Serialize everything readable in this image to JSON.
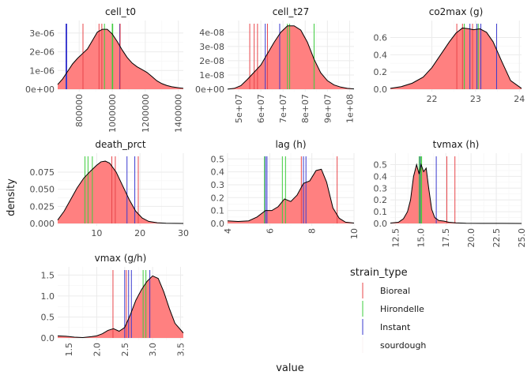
{
  "figure": {
    "xlabel": "value",
    "ylabel": "density"
  },
  "legend": {
    "title": "strain_type",
    "placement": "bottom-right",
    "entries": [
      {
        "label": "Bioreal",
        "color": "#F8766D"
      },
      {
        "label": "Hirondelle",
        "color": "#00C000"
      },
      {
        "label": "Instant",
        "color": "#3030D0"
      },
      {
        "label": "sourdough",
        "color": "#F4A6A6"
      }
    ]
  },
  "colors": {
    "density_fill": "#FF8080",
    "density_line": "#000000",
    "Bioreal": "#E8454A",
    "Hirondelle": "#3DCC3D",
    "Instant": "#3A3ACF"
  },
  "chart_data": [
    {
      "type": "area",
      "title": "cell_t0",
      "xlim": [
        670000,
        1430000
      ],
      "ylim": [
        0,
        3.5e-06
      ],
      "xticks": [
        800000,
        1000000,
        1200000,
        1400000
      ],
      "xtick_labels": [
        "800000",
        "1000000",
        "1200000",
        "1400000"
      ],
      "yticks": [
        0,
        1e-06,
        2e-06,
        3e-06
      ],
      "ytick_labels": [
        "0e+00",
        "1e-06",
        "2e-06",
        "3e-06"
      ],
      "x_label_rotation": 90,
      "density": {
        "x": [
          670000,
          700000,
          730000,
          760000,
          790000,
          820000,
          850000,
          880000,
          910000,
          940000,
          970000,
          1000000,
          1030000,
          1060000,
          1090000,
          1120000,
          1150000,
          1180000,
          1210000,
          1240000,
          1270000,
          1300000,
          1330000,
          1360000,
          1400000,
          1430000
        ],
        "y": [
          2.5e-07,
          5.5e-07,
          9.5e-07,
          1.35e-06,
          1.65e-06,
          1.9e-06,
          2.15e-06,
          2.6e-06,
          3.05e-06,
          3.2e-06,
          3.2e-06,
          2.95e-06,
          2.55e-06,
          2.1e-06,
          1.7e-06,
          1.4e-06,
          1.2e-06,
          1.05e-06,
          9e-07,
          6.8e-07,
          4.5e-07,
          3e-07,
          2e-07,
          1.3e-07,
          8e-08,
          5e-08
        ]
      },
      "markers": [
        {
          "strain": "Instant",
          "x": 720000
        },
        {
          "strain": "Instant",
          "x": 725000
        },
        {
          "strain": "Bioreal",
          "x": 823000
        },
        {
          "strain": "Bioreal",
          "x": 920000
        },
        {
          "strain": "Bioreal",
          "x": 937000
        },
        {
          "strain": "Hirondelle",
          "x": 953000
        },
        {
          "strain": "Hirondelle",
          "x": 1000000
        },
        {
          "strain": "Hirondelle",
          "x": 1003000
        },
        {
          "strain": "Instant",
          "x": 1045000
        },
        {
          "strain": "Bioreal",
          "x": 1048000
        }
      ]
    },
    {
      "type": "area",
      "title": "cell_t27",
      "xlim": [
        45000000,
        102000000
      ],
      "ylim": [
        0,
        4.6e-08
      ],
      "xticks": [
        50000000,
        60000000,
        70000000,
        80000000,
        90000000,
        100000000
      ],
      "xtick_labels": [
        "5e+07",
        "6e+07",
        "7e+07",
        "8e+07",
        "9e+07",
        "1e+08"
      ],
      "yticks": [
        0,
        1e-08,
        2e-08,
        3e-08,
        4e-08
      ],
      "ytick_labels": [
        "0e+00",
        "1e-08",
        "2e-08",
        "3e-08",
        "4e-08"
      ],
      "x_label_rotation": 90,
      "density": {
        "x": [
          45000000,
          48000000,
          51000000,
          54000000,
          57000000,
          60000000,
          63000000,
          66000000,
          69000000,
          72000000,
          75000000,
          78000000,
          81000000,
          84000000,
          87000000,
          90000000,
          93000000,
          96000000,
          99000000,
          102000000
        ],
        "y": [
          1e-10,
          6e-10,
          2.5e-09,
          7e-09,
          1.2e-08,
          1.7e-08,
          2.5e-08,
          3.3e-08,
          4e-08,
          4.45e-08,
          4.45e-08,
          4.15e-08,
          3.3e-08,
          2.1e-08,
          1.15e-08,
          6e-09,
          3e-09,
          1.5e-09,
          6e-10,
          2e-10
        ]
      },
      "markers": [
        {
          "strain": "Bioreal",
          "x": 55000000
        },
        {
          "strain": "Bioreal",
          "x": 57000000
        },
        {
          "strain": "Bioreal",
          "x": 58500000
        },
        {
          "strain": "Instant",
          "x": 62000000
        },
        {
          "strain": "Bioreal",
          "x": 63000000
        },
        {
          "strain": "Instant",
          "x": 68500000
        },
        {
          "strain": "Hirondelle",
          "x": 72000000
        },
        {
          "strain": "Hirondelle",
          "x": 73000000
        },
        {
          "strain": "Hirondelle",
          "x": 84000000
        }
      ]
    },
    {
      "type": "area",
      "title": "co2max (g)",
      "xlim": [
        21.05,
        24.05
      ],
      "ylim": [
        0,
        0.76
      ],
      "xticks": [
        22,
        23,
        24
      ],
      "xtick_labels": [
        "22",
        "23",
        "24"
      ],
      "yticks": [
        0.0,
        0.2,
        0.4,
        0.6
      ],
      "ytick_labels": [
        "0.0",
        "0.2",
        "0.4",
        "0.6"
      ],
      "x_label_rotation": 0,
      "density": {
        "x": [
          21.05,
          21.3,
          21.55,
          21.8,
          22.0,
          22.2,
          22.4,
          22.55,
          22.7,
          22.85,
          22.95,
          23.1,
          23.25,
          23.4,
          23.6,
          23.8,
          24.05
        ],
        "y": [
          0.01,
          0.03,
          0.07,
          0.14,
          0.25,
          0.4,
          0.55,
          0.65,
          0.71,
          0.7,
          0.69,
          0.7,
          0.66,
          0.55,
          0.32,
          0.1,
          0.01
        ]
      },
      "markers": [
        {
          "strain": "Bioreal",
          "x": 22.57
        },
        {
          "strain": "Bioreal",
          "x": 22.7
        },
        {
          "strain": "Hirondelle",
          "x": 22.74
        },
        {
          "strain": "Instant",
          "x": 22.87
        },
        {
          "strain": "Bioreal",
          "x": 22.93
        },
        {
          "strain": "Instant",
          "x": 23.03
        },
        {
          "strain": "Hirondelle",
          "x": 23.06
        },
        {
          "strain": "Instant",
          "x": 23.12
        },
        {
          "strain": "Instant",
          "x": 23.48
        }
      ]
    },
    {
      "type": "area",
      "title": "death_prct",
      "xlim": [
        1.0,
        30.0
      ],
      "ylim": [
        0,
        0.098
      ],
      "xticks": [
        10,
        20,
        30
      ],
      "xtick_labels": [
        "10",
        "20",
        "30"
      ],
      "yticks": [
        0.0,
        0.025,
        0.05,
        0.075
      ],
      "ytick_labels": [
        "0.000",
        "0.025",
        "0.050",
        "0.075"
      ],
      "x_label_rotation": 0,
      "density": {
        "x": [
          1.0,
          2.5,
          4.0,
          5.5,
          7.0,
          8.5,
          10.0,
          11.0,
          12.0,
          13.0,
          14.5,
          16.0,
          17.5,
          19.0,
          20.5,
          22.0,
          24.0,
          26.0,
          28.0,
          30.0
        ],
        "y": [
          0.005,
          0.018,
          0.035,
          0.052,
          0.066,
          0.076,
          0.085,
          0.09,
          0.091,
          0.088,
          0.075,
          0.055,
          0.035,
          0.018,
          0.008,
          0.003,
          0.001,
          0.0003,
          0.0001,
          0.0
        ]
      },
      "markers": [
        {
          "strain": "Hirondelle",
          "x": 7.3
        },
        {
          "strain": "Hirondelle",
          "x": 8.0
        },
        {
          "strain": "Hirondelle",
          "x": 9.0
        },
        {
          "strain": "Bioreal",
          "x": 13.5
        },
        {
          "strain": "Bioreal",
          "x": 14.3
        },
        {
          "strain": "Instant",
          "x": 17.0
        },
        {
          "strain": "Instant",
          "x": 18.8
        },
        {
          "strain": "Bioreal",
          "x": 19.6
        }
      ]
    },
    {
      "type": "area",
      "title": "lag (h)",
      "xlim": [
        4.0,
        10.0
      ],
      "ylim": [
        0,
        0.52
      ],
      "xticks": [
        4,
        6,
        8,
        10
      ],
      "xtick_labels": [
        "4",
        "6",
        "8",
        "10"
      ],
      "yticks": [
        0.0,
        0.1,
        0.2,
        0.3,
        0.4,
        0.5
      ],
      "ytick_labels": [
        "0.0",
        "0.1",
        "0.2",
        "0.3",
        "0.4",
        "0.5"
      ],
      "x_label_rotation": 90,
      "density": {
        "x": [
          4.0,
          4.5,
          5.0,
          5.4,
          5.8,
          6.1,
          6.4,
          6.7,
          7.0,
          7.3,
          7.6,
          7.9,
          8.2,
          8.45,
          8.7,
          9.0,
          9.3,
          9.6,
          10.0
        ],
        "y": [
          0.02,
          0.015,
          0.02,
          0.05,
          0.1,
          0.1,
          0.13,
          0.19,
          0.17,
          0.22,
          0.31,
          0.33,
          0.41,
          0.42,
          0.32,
          0.12,
          0.04,
          0.01,
          0.003
        ]
      },
      "markers": [
        {
          "strain": "Hirondelle",
          "x": 5.75
        },
        {
          "strain": "Instant",
          "x": 5.8
        },
        {
          "strain": "Instant",
          "x": 5.87
        },
        {
          "strain": "Hirondelle",
          "x": 6.6
        },
        {
          "strain": "Hirondelle",
          "x": 6.75
        },
        {
          "strain": "Bioreal",
          "x": 7.5
        },
        {
          "strain": "Instant",
          "x": 7.6
        },
        {
          "strain": "Instant",
          "x": 7.72
        },
        {
          "strain": "Bioreal",
          "x": 9.2
        }
      ]
    },
    {
      "type": "area",
      "title": "tvmax (h)",
      "xlim": [
        12.0,
        25.0
      ],
      "ylim": [
        0,
        0.57
      ],
      "xticks": [
        12.5,
        15.0,
        17.5,
        20.0,
        22.5,
        25.0
      ],
      "xtick_labels": [
        "12.5",
        "15.0",
        "17.5",
        "20.0",
        "22.5",
        "25.0"
      ],
      "yticks": [
        0.0,
        0.1,
        0.2,
        0.3,
        0.4,
        0.5
      ],
      "ytick_labels": [
        "0.0",
        "0.1",
        "0.2",
        "0.3",
        "0.4",
        "0.5"
      ],
      "x_label_rotation": 90,
      "density": {
        "x": [
          12.0,
          12.8,
          13.3,
          13.7,
          14.0,
          14.3,
          14.6,
          14.85,
          15.05,
          15.3,
          15.55,
          15.8,
          16.1,
          16.4,
          16.8,
          17.3,
          17.8,
          18.5,
          19.5,
          21.0,
          23.0,
          25.0
        ],
        "y": [
          0.003,
          0.01,
          0.04,
          0.1,
          0.2,
          0.4,
          0.5,
          0.42,
          0.5,
          0.44,
          0.47,
          0.3,
          0.12,
          0.05,
          0.025,
          0.02,
          0.01,
          0.005,
          0.002,
          0.001,
          0.0005,
          0.0002
        ]
      },
      "markers": [
        {
          "strain": "Hirondelle",
          "x": 14.85
        },
        {
          "strain": "Instant",
          "x": 14.95
        },
        {
          "strain": "Hirondelle",
          "x": 15.0
        },
        {
          "strain": "Hirondelle",
          "x": 15.1
        },
        {
          "strain": "Instant",
          "x": 16.55
        },
        {
          "strain": "Bioreal",
          "x": 17.6
        },
        {
          "strain": "Bioreal",
          "x": 18.4
        }
      ]
    },
    {
      "type": "area",
      "title": "vmax (g/h)",
      "xlim": [
        1.3,
        3.55
      ],
      "ylim": [
        0,
        1.62
      ],
      "xticks": [
        1.5,
        2.0,
        2.5,
        3.0,
        3.5
      ],
      "xtick_labels": [
        "1.5",
        "2.0",
        "2.5",
        "3.0",
        "3.5"
      ],
      "yticks": [
        0.0,
        0.5,
        1.0,
        1.5
      ],
      "ytick_labels": [
        "0.0",
        "0.5",
        "1.0",
        "1.5"
      ],
      "x_label_rotation": 90,
      "density": {
        "x": [
          1.3,
          1.45,
          1.6,
          1.75,
          1.9,
          2.0,
          2.1,
          2.2,
          2.3,
          2.4,
          2.5,
          2.6,
          2.7,
          2.8,
          2.9,
          3.0,
          3.1,
          3.2,
          3.3,
          3.4,
          3.55
        ],
        "y": [
          0.05,
          0.04,
          0.02,
          0.01,
          0.03,
          0.05,
          0.1,
          0.18,
          0.22,
          0.16,
          0.25,
          0.55,
          0.9,
          1.15,
          1.35,
          1.48,
          1.42,
          1.1,
          0.7,
          0.35,
          0.12
        ]
      },
      "markers": [
        {
          "strain": "Bioreal",
          "x": 2.29
        },
        {
          "strain": "Instant",
          "x": 2.5
        },
        {
          "strain": "Bioreal",
          "x": 2.53
        },
        {
          "strain": "Instant",
          "x": 2.57
        },
        {
          "strain": "Instant",
          "x": 2.62
        },
        {
          "strain": "Hirondelle",
          "x": 2.83
        },
        {
          "strain": "Hirondelle",
          "x": 2.88
        },
        {
          "strain": "Instant",
          "x": 2.95
        }
      ]
    }
  ]
}
